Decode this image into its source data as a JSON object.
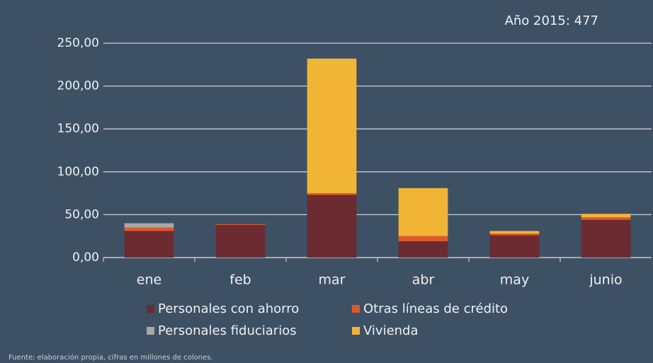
{
  "chart_data": {
    "type": "stacked_bar",
    "annotation": "Año 2015: 477",
    "footnote": "Fuente: elaboración propia, cifras en millones de colones.",
    "categories": [
      "ene",
      "feb",
      "mar",
      "abr",
      "may",
      "junio"
    ],
    "series": [
      {
        "name": "Personales con ahorro",
        "color": "#6b2b31",
        "values": [
          31,
          38,
          73,
          19,
          26,
          44
        ]
      },
      {
        "name": "Otras líneas de crédito",
        "color": "#e0592b",
        "values": [
          4,
          1,
          2,
          6,
          2,
          3
        ]
      },
      {
        "name": "Personales fiduciarios",
        "color": "#a8a8a8",
        "values": [
          5,
          0,
          0,
          0,
          0,
          0
        ]
      },
      {
        "name": "Vivienda",
        "color": "#f1b435",
        "values": [
          0,
          0,
          157,
          56,
          3,
          4
        ]
      }
    ],
    "ylim": [
      0,
      250
    ],
    "yticks": [
      {
        "value": 0,
        "label": "0,00"
      },
      {
        "value": 50,
        "label": "50,00"
      },
      {
        "value": 100,
        "label": "100,00"
      },
      {
        "value": 150,
        "label": "150,00"
      },
      {
        "value": 200,
        "label": "200,00"
      },
      {
        "value": 250,
        "label": "250,00"
      }
    ],
    "grid": true
  }
}
